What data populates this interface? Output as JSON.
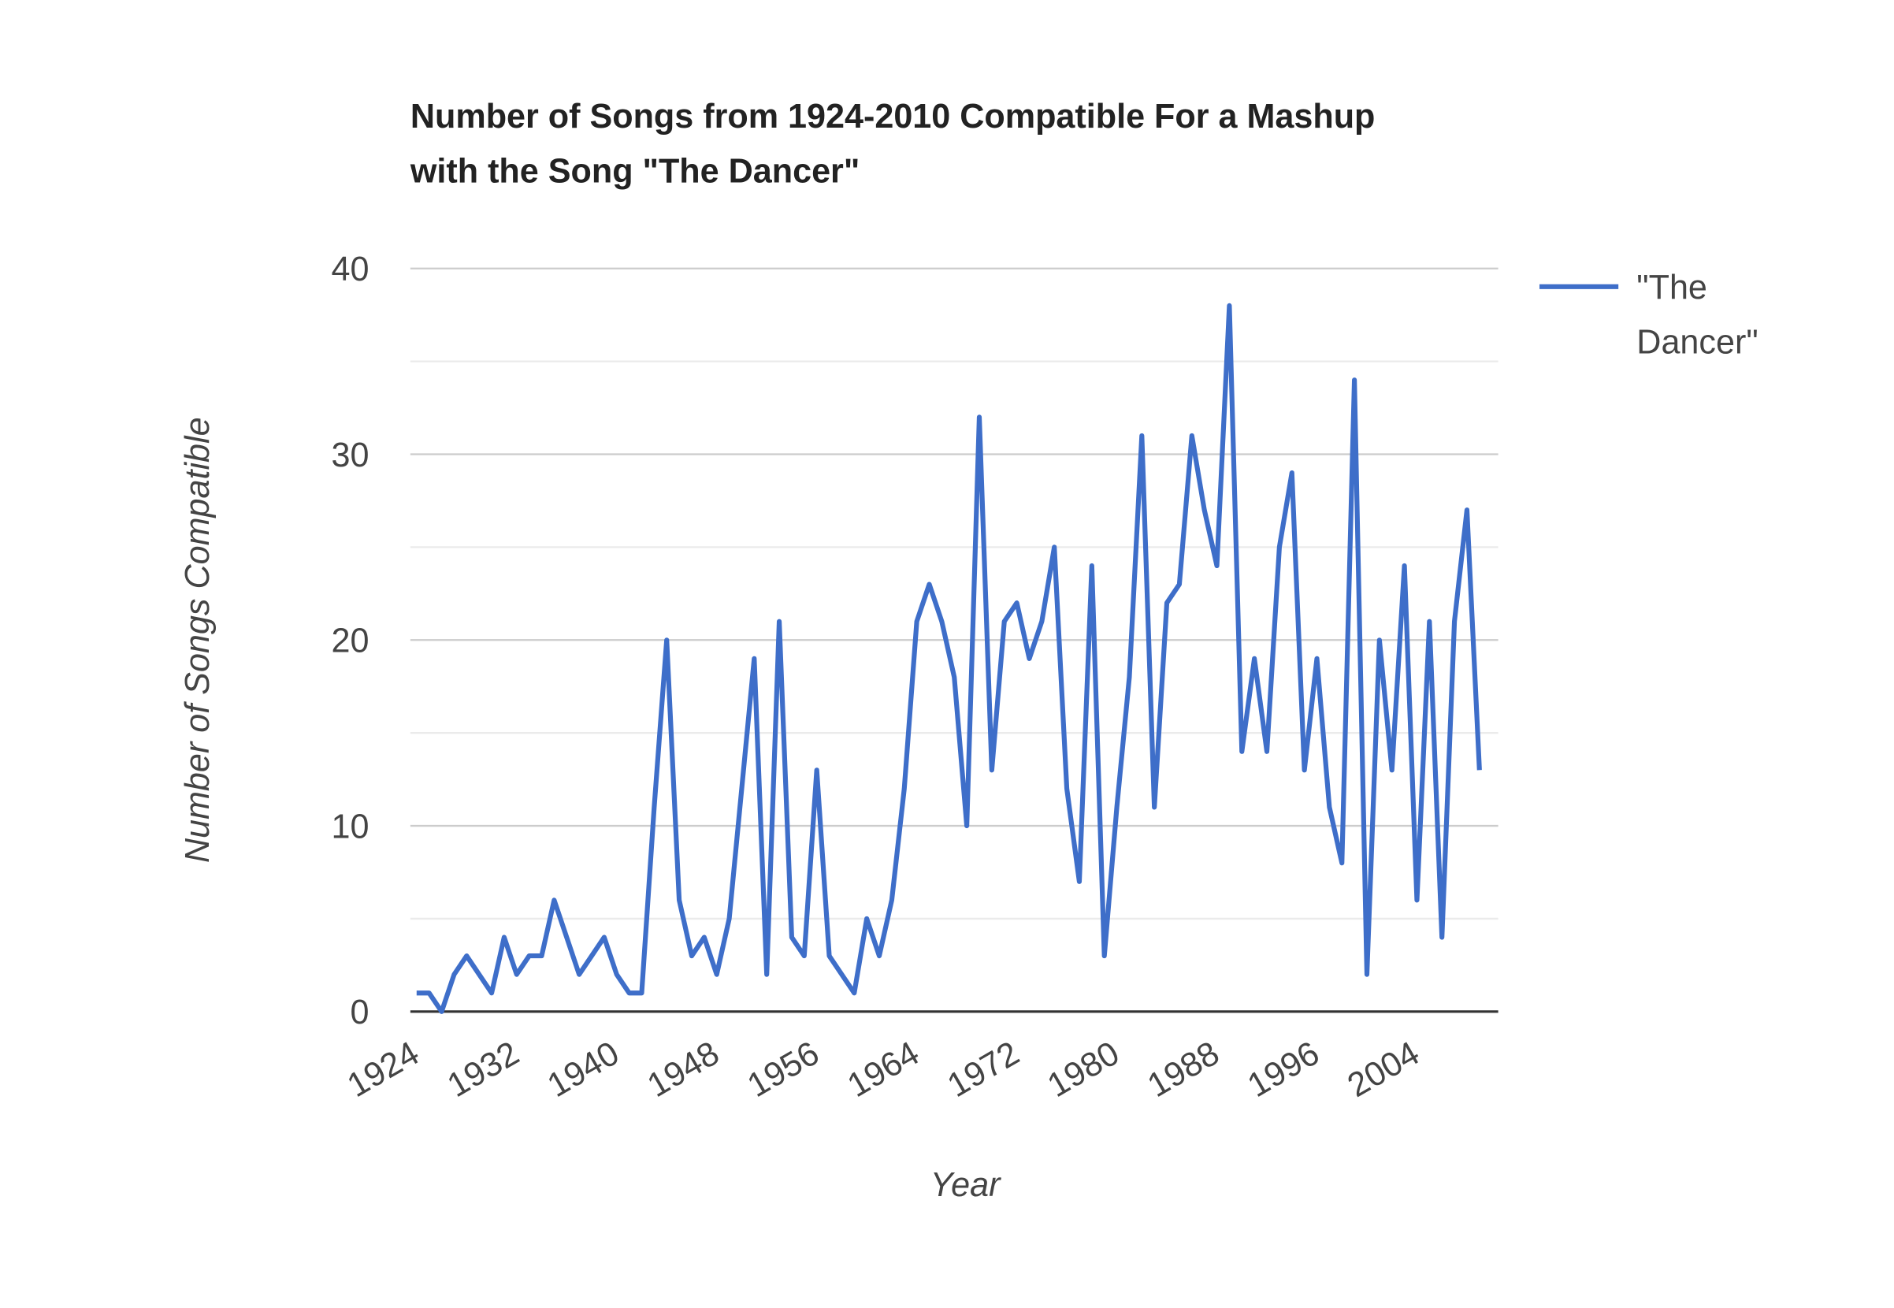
{
  "chart_data": {
    "type": "line",
    "title": "Number of Songs from 1924-2010 Compatible For a Mashup with the Song \"The Dancer\"",
    "x_label": "Year",
    "y_label": "Number of Songs Compatible",
    "x": [
      1924,
      1925,
      1926,
      1927,
      1928,
      1929,
      1930,
      1931,
      1932,
      1933,
      1934,
      1935,
      1936,
      1937,
      1938,
      1939,
      1940,
      1941,
      1942,
      1943,
      1944,
      1945,
      1946,
      1947,
      1948,
      1949,
      1950,
      1951,
      1952,
      1953,
      1954,
      1955,
      1956,
      1957,
      1958,
      1959,
      1960,
      1961,
      1962,
      1963,
      1964,
      1965,
      1966,
      1967,
      1968,
      1969,
      1970,
      1971,
      1972,
      1973,
      1974,
      1975,
      1976,
      1977,
      1978,
      1979,
      1980,
      1981,
      1982,
      1983,
      1984,
      1985,
      1986,
      1987,
      1988,
      1989,
      1990,
      1991,
      1992,
      1993,
      1994,
      1995,
      1996,
      1997,
      1998,
      1999,
      2000,
      2001,
      2002,
      2003,
      2004,
      2005,
      2006,
      2007,
      2008,
      2009
    ],
    "series": [
      {
        "name": "\"The Dancer\"",
        "color": "#3e6ec9",
        "values": [
          1,
          1,
          0,
          2,
          3,
          2,
          1,
          4,
          2,
          3,
          3,
          6,
          4,
          2,
          3,
          4,
          2,
          1,
          1,
          11,
          20,
          6,
          3,
          4,
          2,
          5,
          12,
          19,
          2,
          21,
          4,
          3,
          13,
          3,
          2,
          1,
          5,
          3,
          6,
          12,
          21,
          23,
          21,
          18,
          10,
          32,
          13,
          21,
          22,
          19,
          21,
          25,
          12,
          7,
          24,
          3,
          11,
          18,
          31,
          11,
          22,
          23,
          31,
          27,
          24,
          38,
          14,
          19,
          14,
          25,
          29,
          13,
          19,
          11,
          8,
          34,
          2,
          20,
          13,
          24,
          6,
          21,
          4,
          21,
          27,
          13
        ]
      }
    ],
    "xlim": [
      1923.5,
      2010.5
    ],
    "xticks": [
      1924,
      1932,
      1940,
      1948,
      1956,
      1964,
      1972,
      1980,
      1988,
      1996,
      2004
    ],
    "ylim": [
      0,
      40
    ],
    "yticks": [
      0,
      10,
      20,
      30,
      40
    ],
    "minor_yticks": [
      5,
      15,
      25,
      35
    ],
    "grid": true,
    "legend": "right"
  }
}
